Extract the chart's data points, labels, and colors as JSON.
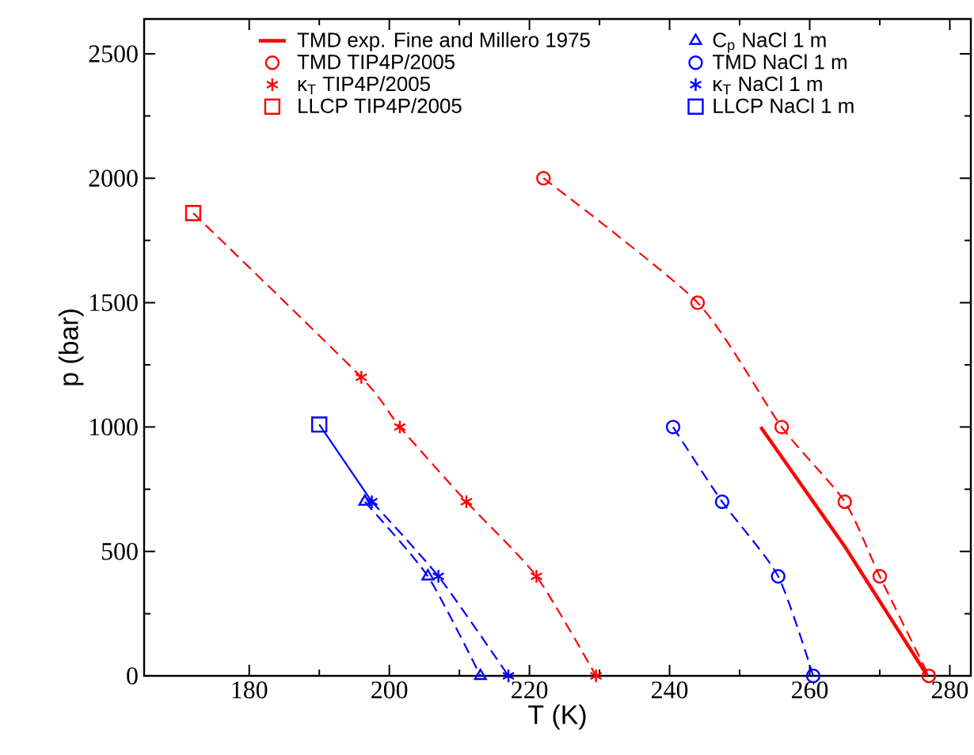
{
  "chart_data": {
    "type": "scatter",
    "xlabel": "T (K)",
    "ylabel": "p (bar)",
    "xlim": [
      165,
      283
    ],
    "ylim": [
      0,
      2640
    ],
    "xticks": [
      180,
      200,
      220,
      240,
      260,
      280
    ],
    "yticks": [
      0,
      500,
      1000,
      1500,
      2000,
      2500
    ],
    "legend": "top",
    "series": [
      {
        "name": "TMD exp. Fine and Millero 1975",
        "type": "line",
        "color": "#ff0000",
        "line_style": "solid",
        "marker": "none",
        "x": [
          253,
          265,
          276.8
        ],
        "values": [
          1000,
          520,
          0
        ]
      },
      {
        "name": "TMD TIP4P/2005",
        "color": "#ff0000",
        "marker": "circle",
        "x": [
          222,
          244,
          256,
          265,
          270,
          277
        ],
        "values": [
          2000,
          1500,
          1000,
          700,
          400,
          0
        ]
      },
      {
        "name": "κ$_{T}$ TIP4P/2005",
        "color": "#ff0000",
        "marker": "cross",
        "x": [
          196,
          201.5,
          211,
          221,
          229.5
        ],
        "values": [
          1200,
          1000,
          700,
          400,
          0
        ]
      },
      {
        "name": "LLCP TIP4P/2005",
        "color": "#ff0000",
        "marker": "square",
        "x": [
          172
        ],
        "values": [
          1860
        ]
      },
      {
        "name": "C$_{p}$ NaCl 1 m",
        "color": "#0000ff",
        "marker": "triangle",
        "x": [
          196.5,
          205.5,
          213
        ],
        "values": [
          700,
          400,
          0
        ]
      },
      {
        "name": "TMD NaCl 1 m",
        "color": "#0000ff",
        "marker": "circle",
        "x": [
          240.5,
          247.5,
          255.5,
          260.5
        ],
        "values": [
          1000,
          700,
          400,
          0
        ]
      },
      {
        "name": "κ$_{T}$ NaCl 1 m",
        "color": "#0000ff",
        "marker": "cross",
        "x": [
          197.5,
          207,
          217
        ],
        "values": [
          700,
          400,
          0
        ]
      },
      {
        "name": "LLCP NaCl 1 m",
        "color": "#0000ff",
        "marker": "square",
        "x": [
          190
        ],
        "values": [
          1010
        ]
      },
      {
        "type": "line",
        "color": "#ff0000",
        "line_style": "dashed",
        "marker": "none",
        "x": [
          222,
          244,
          256,
          265,
          270,
          277
        ],
        "values": [
          2000,
          1500,
          1000,
          700,
          400,
          0
        ]
      },
      {
        "type": "line",
        "color": "#ff0000",
        "line_style": "dashed",
        "marker": "none",
        "x": [
          172,
          196,
          201.5,
          211,
          221,
          229.5
        ],
        "values": [
          1860,
          1200,
          1000,
          700,
          400,
          0
        ]
      },
      {
        "type": "line",
        "color": "#0000ff",
        "line_style": "dashed",
        "marker": "none",
        "x": [
          240.5,
          247.5,
          255.5,
          260.5
        ],
        "values": [
          1000,
          700,
          400,
          0
        ]
      },
      {
        "type": "line",
        "color": "#0000ff",
        "line_style": "solid",
        "marker": "none",
        "x": [
          190,
          197.5
        ],
        "values": [
          1010,
          700
        ]
      },
      {
        "type": "line",
        "color": "#0000ff",
        "line_style": "dashed",
        "marker": "none",
        "x": [
          197.5,
          207,
          217
        ],
        "values": [
          700,
          400,
          0
        ]
      },
      {
        "type": "line",
        "color": "#0000ff",
        "line_style": "dashed",
        "marker": "none",
        "x": [
          196.5,
          205.5,
          213
        ],
        "values": [
          700,
          400,
          0
        ]
      }
    ]
  }
}
